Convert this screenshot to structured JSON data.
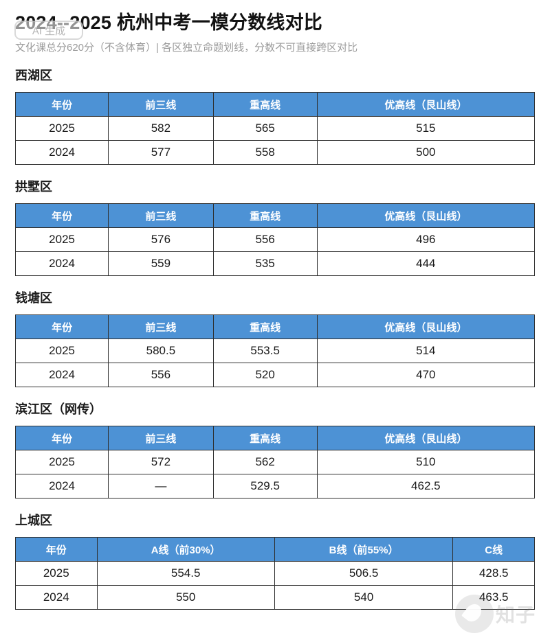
{
  "page": {
    "title": "2024--2025 杭州中考一模分数线对比",
    "subtitle": "文化课总分620分（不含体育）| 各区独立命题划线，分数不可直接跨区对比",
    "ai_badge_label": "AI 生成",
    "watermark_text": "知子"
  },
  "colors": {
    "header_bg": "#4D92D5",
    "header_text": "#FFFFFF",
    "table_border": "#2E2E2E",
    "title_text": "#121212",
    "subtitle_text": "#9B9B9B"
  },
  "sections": [
    {
      "name": "西湖区",
      "headers": [
        "年份",
        "前三线",
        "重高线",
        "优高线（艮山线）"
      ],
      "col_widths": [
        "17.9%",
        "20.2%",
        "20.0%",
        "41.9%"
      ],
      "rows": [
        [
          "2025",
          "582",
          "565",
          "515"
        ],
        [
          "2024",
          "577",
          "558",
          "500"
        ]
      ]
    },
    {
      "name": "拱墅区",
      "headers": [
        "年份",
        "前三线",
        "重高线",
        "优高线（艮山线）"
      ],
      "col_widths": [
        "17.9%",
        "20.2%",
        "20.0%",
        "41.9%"
      ],
      "rows": [
        [
          "2025",
          "576",
          "556",
          "496"
        ],
        [
          "2024",
          "559",
          "535",
          "444"
        ]
      ]
    },
    {
      "name": "钱塘区",
      "headers": [
        "年份",
        "前三线",
        "重高线",
        "优高线（艮山线）"
      ],
      "col_widths": [
        "17.9%",
        "20.2%",
        "20.0%",
        "41.9%"
      ],
      "rows": [
        [
          "2025",
          "580.5",
          "553.5",
          "514"
        ],
        [
          "2024",
          "556",
          "520",
          "470"
        ]
      ]
    },
    {
      "name": "滨江区（网传）",
      "headers": [
        "年份",
        "前三线",
        "重高线",
        "优高线（艮山线）"
      ],
      "col_widths": [
        "17.9%",
        "20.2%",
        "20.0%",
        "41.9%"
      ],
      "rows": [
        [
          "2025",
          "572",
          "562",
          "510"
        ],
        [
          "2024",
          "—",
          "529.5",
          "462.5"
        ]
      ]
    },
    {
      "name": "上城区",
      "headers": [
        "年份",
        "A线（前30%）",
        "B线（前55%）",
        "C线"
      ],
      "col_widths": [
        "15.7%",
        "34.2%",
        "34.4%",
        "15.7%"
      ],
      "rows": [
        [
          "2025",
          "554.5",
          "506.5",
          "428.5"
        ],
        [
          "2024",
          "550",
          "540",
          "463.5"
        ]
      ]
    }
  ]
}
